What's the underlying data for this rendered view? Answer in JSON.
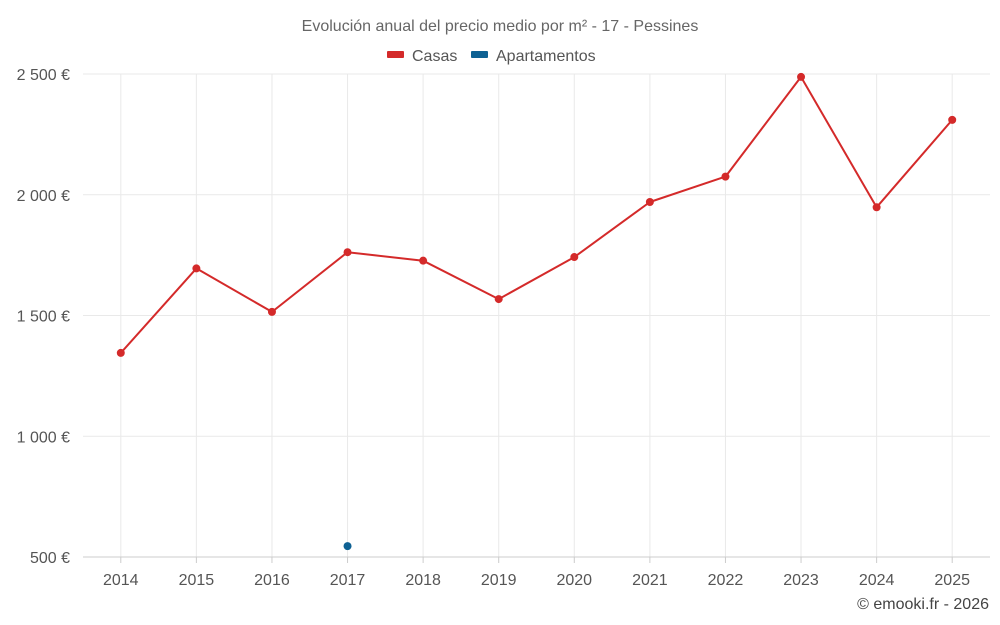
{
  "chart_data": {
    "type": "line",
    "title": "Evolución anual del precio medio por m² - 17 - Pessines",
    "categories": [
      "2014",
      "2015",
      "2016",
      "2017",
      "2018",
      "2019",
      "2020",
      "2021",
      "2022",
      "2023",
      "2024",
      "2025"
    ],
    "series": [
      {
        "name": "Casas",
        "color": "#d42a2a",
        "values": [
          1345,
          1695,
          1515,
          1762,
          1727,
          1568,
          1742,
          1970,
          2075,
          2488,
          1948,
          2310
        ]
      },
      {
        "name": "Apartamentos",
        "color": "#0e6193",
        "values": [
          null,
          null,
          null,
          545,
          null,
          null,
          null,
          null,
          null,
          null,
          null,
          null
        ]
      }
    ],
    "y_ticks": [
      500,
      1000,
      1500,
      2000,
      2500
    ],
    "y_tick_labels": [
      "500 €",
      "1 000 €",
      "1 500 €",
      "2 000 €",
      "2 500 €"
    ],
    "ylim": [
      500,
      2500
    ],
    "xlabel": "",
    "ylabel": "",
    "legend_position": "top-center",
    "grid": true
  },
  "credit": "© emooki.fr - 2026"
}
